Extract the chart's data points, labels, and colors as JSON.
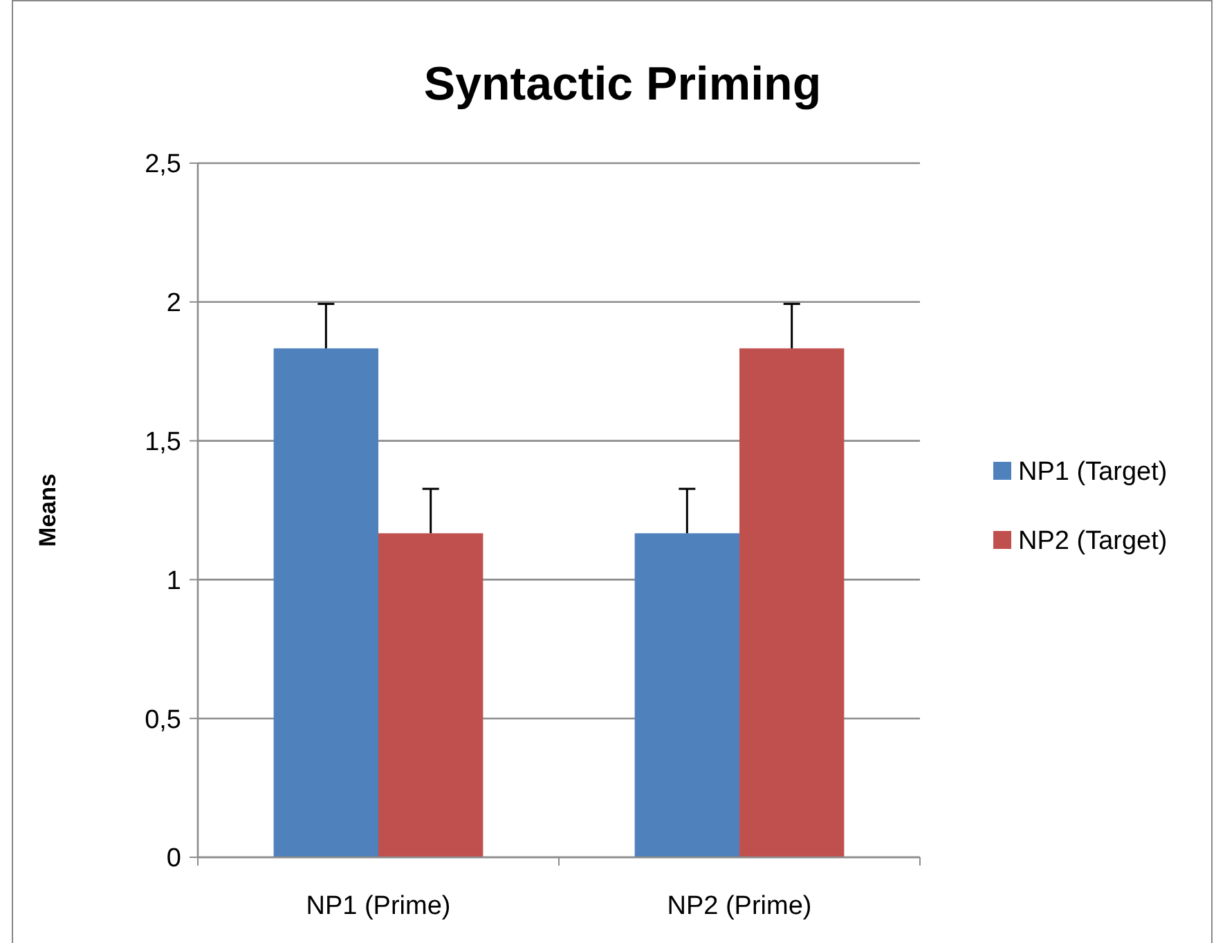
{
  "chart_data": {
    "type": "bar",
    "title": "Syntactic Priming",
    "ylabel": "Means",
    "categories": [
      "NP1 (Prime)",
      "NP2 (Prime)"
    ],
    "series": [
      {
        "name": "NP1 (Target)",
        "color": "#4f81bd",
        "values": [
          1.833,
          1.167
        ],
        "errors": [
          [
            1.833,
            1.993
          ],
          [
            1.167,
            1.327
          ]
        ]
      },
      {
        "name": "NP2 (Target)",
        "color": "#c0504d",
        "values": [
          1.167,
          1.833
        ],
        "errors": [
          [
            1.167,
            1.327
          ],
          [
            1.833,
            1.993
          ]
        ]
      }
    ],
    "ylim": [
      0,
      2.5
    ],
    "yticks": [
      0,
      {
        "value": 0.5,
        "label": "0,5"
      },
      1,
      {
        "value": 1.5,
        "label": "1,5"
      },
      2,
      {
        "value": 2.5,
        "label": "2,5"
      }
    ],
    "grid": "y",
    "legend": "right"
  }
}
